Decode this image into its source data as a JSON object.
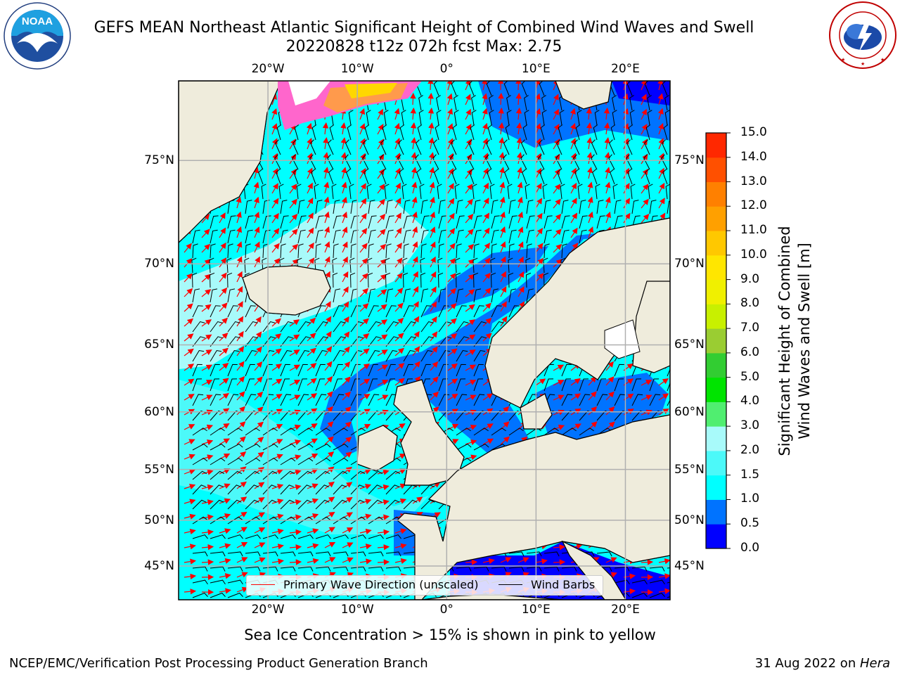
{
  "header": {
    "title_line1": "GEFS MEAN Northeast Atlantic Significant Height of Combined Wind Waves and Swell",
    "title_line2": "20220828 t12z 072h fcst   Max: 2.75"
  },
  "logos": {
    "left": {
      "name": "noaa-logo",
      "text": "NOAA",
      "ring_text": "NATIONAL OCEANIC AND ATMOSPHERIC ADMINISTRATION · U.S. DEPARTMENT OF COMMERCE"
    },
    "right": {
      "name": "nws-logo",
      "ring_text": "NATIONAL WEATHER SERVICE"
    }
  },
  "map": {
    "projection": "mercator",
    "lon_range": [
      -30,
      25
    ],
    "lat_range": [
      41,
      78
    ],
    "grid": true,
    "gridlines_lon": [
      -20,
      -10,
      0,
      10,
      20
    ],
    "gridlines_lat": [
      45,
      50,
      55,
      60,
      65,
      70,
      75
    ],
    "lon_labels": [
      "20°W",
      "10°W",
      "0°",
      "10°E",
      "20°E"
    ],
    "lat_labels": [
      "45°N",
      "50°N",
      "55°N",
      "60°N",
      "65°N",
      "70°N",
      "75°N"
    ],
    "max_value": 2.75,
    "value_units": "m",
    "fields_note": "wave height shading 0-3 m, sea ice in NW corner, red wave direction arrows, black wind barbs"
  },
  "colorbar": {
    "title_line1": "Significant Height of Combined",
    "title_line2": "Wind Waves and Swell [m]",
    "tick_labels": [
      "0.0",
      "0.5",
      "1.0",
      "1.5",
      "2.0",
      "3.0",
      "4.0",
      "5.0",
      "6.0",
      "7.0",
      "8.0",
      "9.0",
      "10.0",
      "11.0",
      "12.0",
      "13.0",
      "14.0",
      "15.0"
    ],
    "colors": [
      "#0000ff",
      "#0073ff",
      "#00ffff",
      "#4cf9f9",
      "#a8fafa",
      "#50ee70",
      "#00e400",
      "#32cd32",
      "#9acd32",
      "#c8f000",
      "#f0f000",
      "#ffe600",
      "#ffc800",
      "#ffa000",
      "#ff8000",
      "#ff5000",
      "#ff2800",
      "#ff0000"
    ]
  },
  "legend": {
    "wave_direction_label": "Primary Wave Direction (unscaled)",
    "wind_barbs_label": "Wind Barbs",
    "wave_direction_color": "#ff0000",
    "wind_barbs_color": "#000000"
  },
  "footer": {
    "sea_ice_note": "Sea Ice Concentration > 15% is shown in pink to yellow",
    "credit": "NCEP/EMC/Verification Post Processing Product Generation Branch",
    "date": "31 Aug 2022 on ",
    "host": "Hera"
  },
  "colors": {
    "land": "#efecdc",
    "grid": "#b0b0b0",
    "coast": "#000000"
  }
}
